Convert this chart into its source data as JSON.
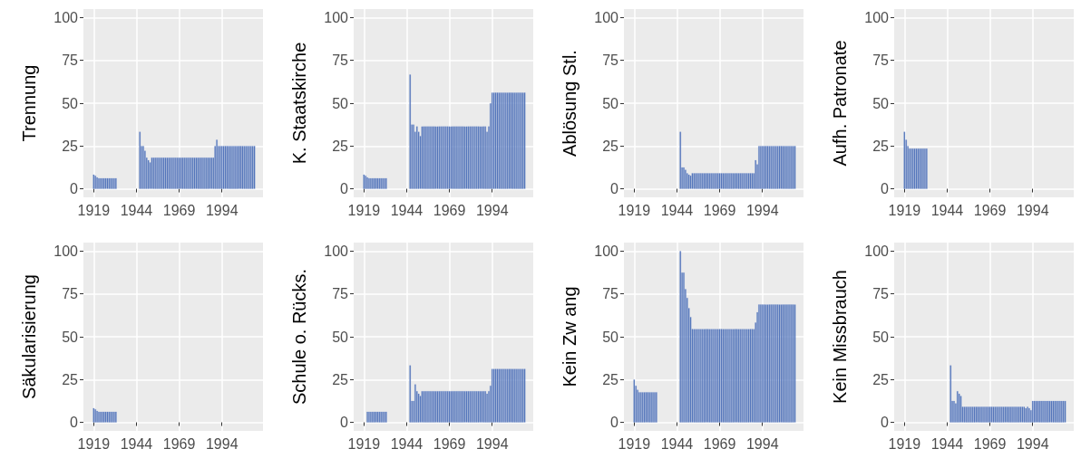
{
  "chart_data": [
    {
      "type": "bar",
      "ylabel": "Trennung",
      "color": "#4a6db5",
      "xlim": [
        1913,
        2018
      ],
      "xticks": [
        1919,
        1944,
        1969,
        1994
      ],
      "ylim": [
        -5,
        105
      ],
      "yticks": [
        0,
        25,
        50,
        75,
        100
      ],
      "grid": true,
      "x": [
        1919,
        1920,
        1921,
        1922,
        1923,
        1924,
        1925,
        1926,
        1927,
        1928,
        1929,
        1930,
        1931,
        1932,
        1933,
        1934,
        1935,
        1936,
        1937,
        1938,
        1939,
        1940,
        1941,
        1942,
        1943,
        1944,
        1945,
        1946,
        1947,
        1948,
        1949,
        1950,
        1951,
        1952,
        1953,
        1954,
        1955,
        1956,
        1957,
        1958,
        1959,
        1960,
        1961,
        1962,
        1963,
        1964,
        1965,
        1966,
        1967,
        1968,
        1969,
        1970,
        1971,
        1972,
        1973,
        1974,
        1975,
        1976,
        1977,
        1978,
        1979,
        1980,
        1981,
        1982,
        1983,
        1984,
        1985,
        1986,
        1987,
        1988,
        1989,
        1990,
        1991,
        1992,
        1993,
        1994,
        1995,
        1996,
        1997,
        1998,
        1999,
        2000,
        2001,
        2002,
        2003,
        2004,
        2005,
        2006,
        2007,
        2008,
        2009,
        2010,
        2011,
        2012,
        2013
      ],
      "values": [
        8.3,
        7.7,
        6.7,
        6.2,
        6.2,
        6.2,
        6.2,
        6.2,
        6.2,
        6.2,
        6.2,
        6.2,
        6.2,
        6.2,
        null,
        null,
        null,
        null,
        null,
        null,
        null,
        null,
        null,
        null,
        null,
        null,
        null,
        33.3,
        25,
        25,
        22.2,
        18.2,
        16.7,
        15.4,
        18.2,
        18.2,
        18.2,
        18.2,
        18.2,
        18.2,
        18.2,
        18.2,
        18.2,
        18.2,
        18.2,
        18.2,
        18.2,
        18.2,
        18.2,
        18.2,
        18.2,
        18.2,
        18.2,
        18.2,
        18.2,
        18.2,
        18.2,
        18.2,
        18.2,
        18.2,
        18.2,
        18.2,
        18.2,
        18.2,
        18.2,
        18.2,
        18.2,
        18.2,
        18.2,
        18.2,
        18.2,
        25,
        28.6,
        25,
        25,
        25,
        25,
        25,
        25,
        25,
        25,
        25,
        25,
        25,
        25,
        25,
        25,
        25,
        25,
        25,
        25,
        25,
        25,
        25,
        25
      ]
    },
    {
      "type": "bar",
      "ylabel": "K. Staatskirche",
      "color": "#4a6db5",
      "xlim": [
        1913,
        2018
      ],
      "xticks": [
        1919,
        1944,
        1969,
        1994
      ],
      "ylim": [
        -5,
        105
      ],
      "yticks": [
        0,
        25,
        50,
        75,
        100
      ],
      "grid": true,
      "x": [
        1919,
        1920,
        1921,
        1922,
        1923,
        1924,
        1925,
        1926,
        1927,
        1928,
        1929,
        1930,
        1931,
        1932,
        1933,
        1934,
        1935,
        1936,
        1937,
        1938,
        1939,
        1940,
        1941,
        1942,
        1943,
        1944,
        1945,
        1946,
        1947,
        1948,
        1949,
        1950,
        1951,
        1952,
        1953,
        1954,
        1955,
        1956,
        1957,
        1958,
        1959,
        1960,
        1961,
        1962,
        1963,
        1964,
        1965,
        1966,
        1967,
        1968,
        1969,
        1970,
        1971,
        1972,
        1973,
        1974,
        1975,
        1976,
        1977,
        1978,
        1979,
        1980,
        1981,
        1982,
        1983,
        1984,
        1985,
        1986,
        1987,
        1988,
        1989,
        1990,
        1991,
        1992,
        1993,
        1994,
        1995,
        1996,
        1997,
        1998,
        1999,
        2000,
        2001,
        2002,
        2003,
        2004,
        2005,
        2006,
        2007,
        2008,
        2009,
        2010,
        2011,
        2012,
        2013
      ],
      "values": [
        8.3,
        7.7,
        6.7,
        6.2,
        6.2,
        6.2,
        6.2,
        6.2,
        6.2,
        6.2,
        6.2,
        6.2,
        6.2,
        6.2,
        null,
        null,
        null,
        null,
        null,
        null,
        null,
        null,
        null,
        null,
        null,
        null,
        null,
        66.7,
        37.5,
        37.5,
        33.3,
        36.4,
        33.3,
        30.8,
        36.4,
        36.4,
        36.4,
        36.4,
        36.4,
        36.4,
        36.4,
        36.4,
        36.4,
        36.4,
        36.4,
        36.4,
        36.4,
        36.4,
        36.4,
        36.4,
        36.4,
        36.4,
        36.4,
        36.4,
        36.4,
        36.4,
        36.4,
        36.4,
        36.4,
        36.4,
        36.4,
        36.4,
        36.4,
        36.4,
        36.4,
        36.4,
        36.4,
        36.4,
        36.4,
        36.4,
        36.4,
        36.4,
        33.3,
        36.4,
        50,
        56.2,
        56.2,
        56.2,
        56.2,
        56.2,
        56.2,
        56.2,
        56.2,
        56.2,
        56.2,
        56.2,
        56.2,
        56.2,
        56.2,
        56.2,
        56.2,
        56.2,
        56.2,
        56.2,
        56.2
      ]
    },
    {
      "type": "bar",
      "ylabel": "Ablösung Stl.",
      "color": "#4a6db5",
      "xlim": [
        1913,
        2018
      ],
      "xticks": [
        1919,
        1944,
        1969,
        1994
      ],
      "ylim": [
        -5,
        105
      ],
      "yticks": [
        0,
        25,
        50,
        75,
        100
      ],
      "grid": true,
      "x": [
        1946,
        1947,
        1948,
        1949,
        1950,
        1951,
        1952,
        1953,
        1954,
        1955,
        1956,
        1957,
        1958,
        1959,
        1960,
        1961,
        1962,
        1963,
        1964,
        1965,
        1966,
        1967,
        1968,
        1969,
        1970,
        1971,
        1972,
        1973,
        1974,
        1975,
        1976,
        1977,
        1978,
        1979,
        1980,
        1981,
        1982,
        1983,
        1984,
        1985,
        1986,
        1987,
        1988,
        1989,
        1990,
        1991,
        1992,
        1993,
        1994,
        1995,
        1996,
        1997,
        1998,
        1999,
        2000,
        2001,
        2002,
        2003,
        2004,
        2005,
        2006,
        2007,
        2008,
        2009,
        2010,
        2011,
        2012,
        2013
      ],
      "values": [
        33.3,
        12.5,
        12.5,
        11.1,
        9.1,
        8.3,
        7.7,
        9.1,
        9.1,
        9.1,
        9.1,
        9.1,
        9.1,
        9.1,
        9.1,
        9.1,
        9.1,
        9.1,
        9.1,
        9.1,
        9.1,
        9.1,
        9.1,
        9.1,
        9.1,
        9.1,
        9.1,
        9.1,
        9.1,
        9.1,
        9.1,
        9.1,
        9.1,
        9.1,
        9.1,
        9.1,
        9.1,
        9.1,
        9.1,
        9.1,
        9.1,
        9.1,
        9.1,
        9.1,
        16.7,
        14.3,
        25,
        25,
        25,
        25,
        25,
        25,
        25,
        25,
        25,
        25,
        25,
        25,
        25,
        25,
        25,
        25,
        25,
        25,
        25,
        25,
        25,
        25
      ]
    },
    {
      "type": "bar",
      "ylabel": "Aufh. Patronate",
      "color": "#4a6db5",
      "xlim": [
        1913,
        2018
      ],
      "xticks": [
        1919,
        1944,
        1969,
        1994
      ],
      "ylim": [
        -5,
        105
      ],
      "yticks": [
        0,
        25,
        50,
        75,
        100
      ],
      "grid": true,
      "x": [
        1919,
        1920,
        1921,
        1922,
        1923,
        1924,
        1925,
        1926,
        1927,
        1928,
        1929,
        1930,
        1931,
        1932
      ],
      "values": [
        33.3,
        28.6,
        25,
        23.5,
        23.5,
        23.5,
        23.5,
        23.5,
        23.5,
        23.5,
        23.5,
        23.5,
        23.5,
        23.5
      ]
    },
    {
      "type": "bar",
      "ylabel": "Säkularisierung",
      "color": "#4a6db5",
      "xlim": [
        1913,
        2018
      ],
      "xticks": [
        1919,
        1944,
        1969,
        1994
      ],
      "ylim": [
        -5,
        105
      ],
      "yticks": [
        0,
        25,
        50,
        75,
        100
      ],
      "grid": true,
      "x": [
        1919,
        1920,
        1921,
        1922,
        1923,
        1924,
        1925,
        1926,
        1927,
        1928,
        1929,
        1930,
        1931,
        1932
      ],
      "values": [
        8.3,
        7.7,
        6.7,
        6.2,
        6.2,
        6.2,
        6.2,
        6.2,
        6.2,
        6.2,
        6.2,
        6.2,
        6.2,
        6.2
      ]
    },
    {
      "type": "bar",
      "ylabel": "Schule o. Rücks.",
      "color": "#4a6db5",
      "xlim": [
        1913,
        2018
      ],
      "xticks": [
        1919,
        1944,
        1969,
        1994
      ],
      "ylim": [
        -5,
        105
      ],
      "yticks": [
        0,
        25,
        50,
        75,
        100
      ],
      "grid": true,
      "x": [
        1921,
        1922,
        1923,
        1924,
        1925,
        1926,
        1927,
        1928,
        1929,
        1930,
        1931,
        1932,
        1946,
        1947,
        1948,
        1949,
        1950,
        1951,
        1952,
        1953,
        1954,
        1955,
        1956,
        1957,
        1958,
        1959,
        1960,
        1961,
        1962,
        1963,
        1964,
        1965,
        1966,
        1967,
        1968,
        1969,
        1970,
        1971,
        1972,
        1973,
        1974,
        1975,
        1976,
        1977,
        1978,
        1979,
        1980,
        1981,
        1982,
        1983,
        1984,
        1985,
        1986,
        1987,
        1988,
        1989,
        1990,
        1991,
        1992,
        1993,
        1994,
        1995,
        1996,
        1997,
        1998,
        1999,
        2000,
        2001,
        2002,
        2003,
        2004,
        2005,
        2006,
        2007,
        2008,
        2009,
        2010,
        2011,
        2012,
        2013
      ],
      "values": [
        6.2,
        6.2,
        6.2,
        6.2,
        6.2,
        6.2,
        6.2,
        6.2,
        6.2,
        6.2,
        6.2,
        6.2,
        33.3,
        12.5,
        12.5,
        22.2,
        18.2,
        16.7,
        15.4,
        18.2,
        18.2,
        18.2,
        18.2,
        18.2,
        18.2,
        18.2,
        18.2,
        18.2,
        18.2,
        18.2,
        18.2,
        18.2,
        18.2,
        18.2,
        18.2,
        18.2,
        18.2,
        18.2,
        18.2,
        18.2,
        18.2,
        18.2,
        18.2,
        18.2,
        18.2,
        18.2,
        18.2,
        18.2,
        18.2,
        18.2,
        18.2,
        18.2,
        18.2,
        18.2,
        18.2,
        18.2,
        18.2,
        16.7,
        18.2,
        21.4,
        31.2,
        31.2,
        31.2,
        31.2,
        31.2,
        31.2,
        31.2,
        31.2,
        31.2,
        31.2,
        31.2,
        31.2,
        31.2,
        31.2,
        31.2,
        31.2,
        31.2,
        31.2,
        31.2,
        31.2
      ]
    },
    {
      "type": "bar",
      "ylabel": "Kein Zw ang",
      "color": "#4a6db5",
      "xlim": [
        1913,
        2018
      ],
      "xticks": [
        1919,
        1944,
        1969,
        1994
      ],
      "ylim": [
        -5,
        105
      ],
      "yticks": [
        0,
        25,
        50,
        75,
        100
      ],
      "grid": true,
      "x": [
        1919,
        1920,
        1921,
        1922,
        1923,
        1924,
        1925,
        1926,
        1927,
        1928,
        1929,
        1930,
        1931,
        1932,
        1946,
        1947,
        1948,
        1949,
        1950,
        1951,
        1952,
        1953,
        1954,
        1955,
        1956,
        1957,
        1958,
        1959,
        1960,
        1961,
        1962,
        1963,
        1964,
        1965,
        1966,
        1967,
        1968,
        1969,
        1970,
        1971,
        1972,
        1973,
        1974,
        1975,
        1976,
        1977,
        1978,
        1979,
        1980,
        1981,
        1982,
        1983,
        1984,
        1985,
        1986,
        1987,
        1988,
        1989,
        1990,
        1991,
        1992,
        1993,
        1994,
        1995,
        1996,
        1997,
        1998,
        1999,
        2000,
        2001,
        2002,
        2003,
        2004,
        2005,
        2006,
        2007,
        2008,
        2009,
        2010,
        2011,
        2012,
        2013
      ],
      "values": [
        25,
        21.4,
        19,
        17.6,
        17.6,
        17.6,
        17.6,
        17.6,
        17.6,
        17.6,
        17.6,
        17.6,
        17.6,
        17.6,
        100,
        87.5,
        87.5,
        77.8,
        72.7,
        66.7,
        61.5,
        54.5,
        54.5,
        54.5,
        54.5,
        54.5,
        54.5,
        54.5,
        54.5,
        54.5,
        54.5,
        54.5,
        54.5,
        54.5,
        54.5,
        54.5,
        54.5,
        54.5,
        54.5,
        54.5,
        54.5,
        54.5,
        54.5,
        54.5,
        54.5,
        54.5,
        54.5,
        54.5,
        54.5,
        54.5,
        54.5,
        54.5,
        54.5,
        54.5,
        54.5,
        54.5,
        54.5,
        54.5,
        58.3,
        64.3,
        68.8,
        68.8,
        68.8,
        68.8,
        68.8,
        68.8,
        68.8,
        68.8,
        68.8,
        68.8,
        68.8,
        68.8,
        68.8,
        68.8,
        68.8,
        68.8,
        68.8,
        68.8,
        68.8,
        68.8,
        68.8,
        68.8
      ]
    },
    {
      "type": "bar",
      "ylabel": "Kein Missbrauch",
      "color": "#4a6db5",
      "xlim": [
        1913,
        2018
      ],
      "xticks": [
        1919,
        1944,
        1969,
        1994
      ],
      "ylim": [
        -5,
        105
      ],
      "yticks": [
        0,
        25,
        50,
        75,
        100
      ],
      "grid": true,
      "x": [
        1946,
        1947,
        1948,
        1949,
        1950,
        1951,
        1952,
        1953,
        1954,
        1955,
        1956,
        1957,
        1958,
        1959,
        1960,
        1961,
        1962,
        1963,
        1964,
        1965,
        1966,
        1967,
        1968,
        1969,
        1970,
        1971,
        1972,
        1973,
        1974,
        1975,
        1976,
        1977,
        1978,
        1979,
        1980,
        1981,
        1982,
        1983,
        1984,
        1985,
        1986,
        1987,
        1988,
        1989,
        1990,
        1991,
        1992,
        1993,
        1994,
        1995,
        1996,
        1997,
        1998,
        1999,
        2000,
        2001,
        2002,
        2003,
        2004,
        2005,
        2006,
        2007,
        2008,
        2009,
        2010,
        2011,
        2012,
        2013
      ],
      "values": [
        33.3,
        12.5,
        12.5,
        11.1,
        18.2,
        16.7,
        15.4,
        9.1,
        9.1,
        9.1,
        9.1,
        9.1,
        9.1,
        9.1,
        9.1,
        9.1,
        9.1,
        9.1,
        9.1,
        9.1,
        9.1,
        9.1,
        9.1,
        9.1,
        9.1,
        9.1,
        9.1,
        9.1,
        9.1,
        9.1,
        9.1,
        9.1,
        9.1,
        9.1,
        9.1,
        9.1,
        9.1,
        9.1,
        9.1,
        9.1,
        9.1,
        9.1,
        9.1,
        9.1,
        8.3,
        9.1,
        8.3,
        7.1,
        12.5,
        12.5,
        12.5,
        12.5,
        12.5,
        12.5,
        12.5,
        12.5,
        12.5,
        12.5,
        12.5,
        12.5,
        12.5,
        12.5,
        12.5,
        12.5,
        12.5,
        12.5,
        12.5,
        12.5
      ]
    }
  ]
}
